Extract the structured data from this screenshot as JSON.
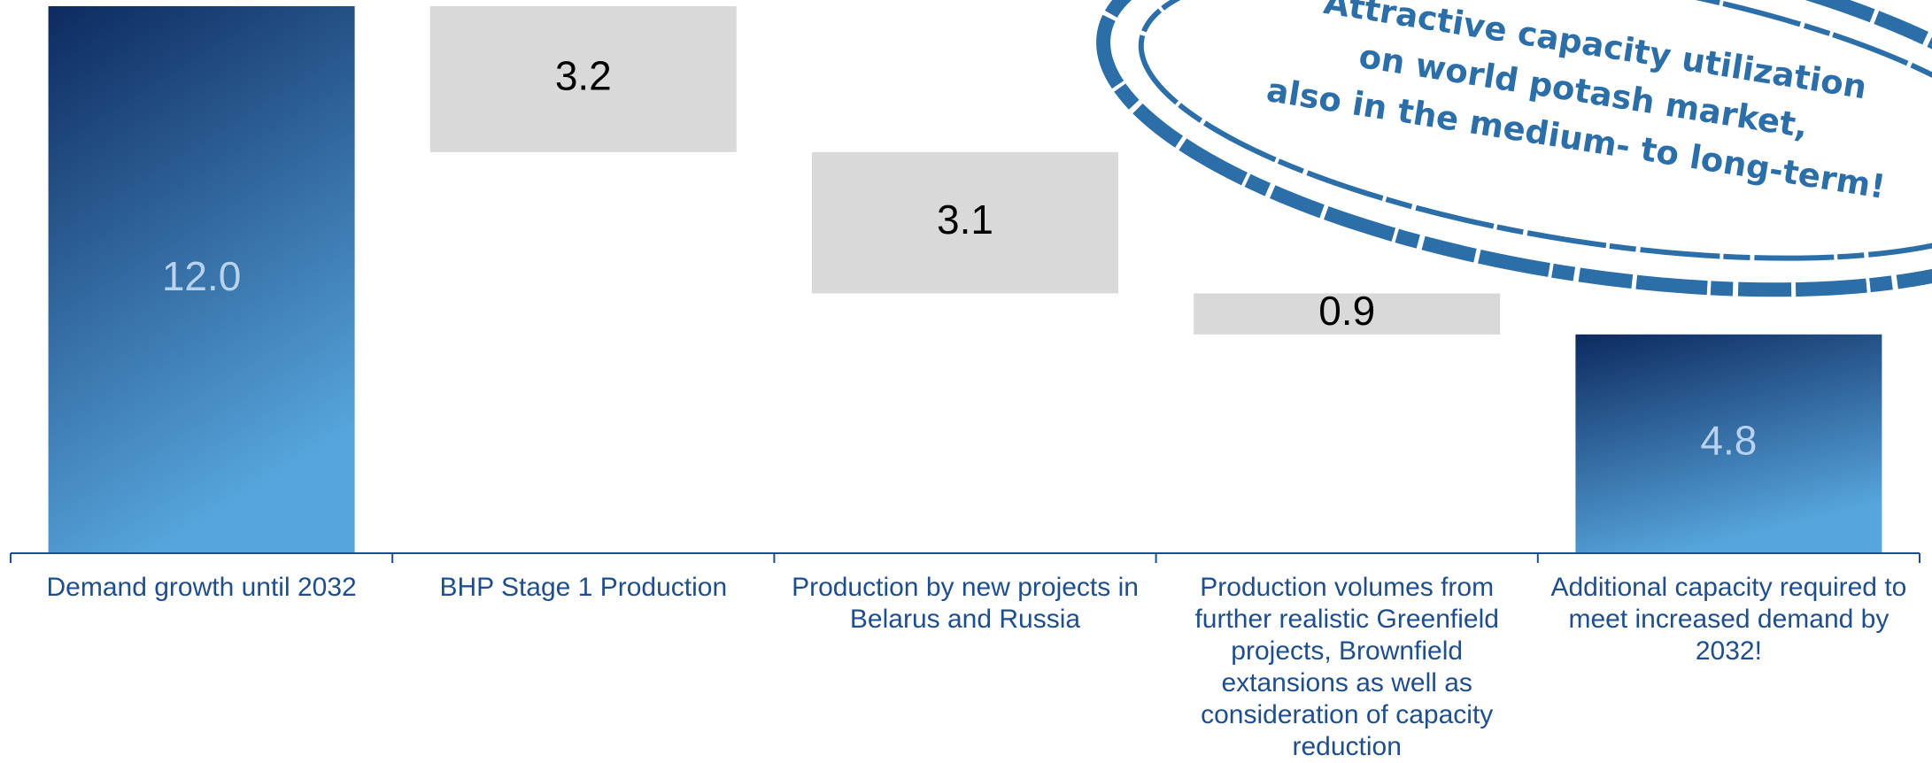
{
  "chart_data": {
    "type": "bar",
    "subtype": "waterfall",
    "title": "",
    "xlabel": "",
    "ylabel": "",
    "ylim": [
      0,
      12
    ],
    "grid": false,
    "categories": [
      [
        "Demand growth until 2032"
      ],
      [
        "BHP Stage 1 Production"
      ],
      [
        "Production by new projects in",
        "Belarus and Russia"
      ],
      [
        "Production volumes from",
        "further realistic Greenfield",
        "projects, Brownfield",
        "extansions as well as",
        "consideration of capacity",
        "reduction"
      ],
      [
        "Additional capacity required to",
        "meet increased demand by",
        "2032!"
      ]
    ],
    "bars": [
      {
        "value": 12.0,
        "label": "12.0",
        "kind": "total",
        "base": 0
      },
      {
        "value": 3.2,
        "label": "3.2",
        "kind": "decrease",
        "base": 8.8
      },
      {
        "value": 3.1,
        "label": "3.1",
        "kind": "decrease",
        "base": 5.7
      },
      {
        "value": 0.9,
        "label": "0.9",
        "kind": "decrease",
        "base": 4.8
      },
      {
        "value": 4.8,
        "label": "4.8",
        "kind": "total",
        "base": 0
      }
    ],
    "colors": {
      "total_top": "#0d2a60",
      "total_bottom": "#56a5dc",
      "decrease": "#d9d9d9",
      "total_label": "#b8d2ef",
      "decrease_label": "#000000",
      "category_label": "#1f4e8c",
      "axis": "#1f4e8c"
    }
  },
  "stamp": {
    "lines": [
      "Attractive capacity utilization",
      "on world potash market,",
      "also in the medium- to long-term!"
    ],
    "color": "#2b6ea8"
  }
}
